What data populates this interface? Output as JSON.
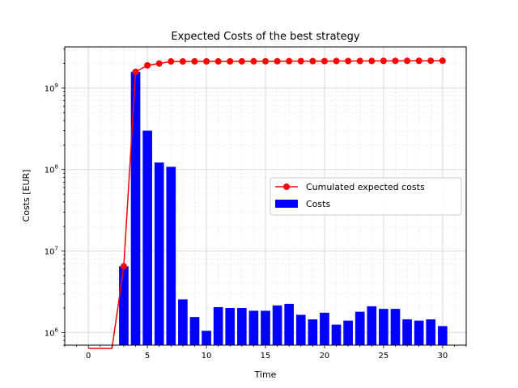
{
  "chart_data": {
    "type": "bar+line",
    "title": "Expected Costs of the best strategy",
    "xlabel": "Time",
    "ylabel": "Costs [EUR]",
    "xlim": [
      -2,
      32
    ],
    "ylim": [
      700000,
      3200000000
    ],
    "yscale": "log",
    "grid": true,
    "legend_placement": "center-right",
    "x_ticks": [
      0,
      5,
      10,
      15,
      20,
      25,
      30
    ],
    "y_ticks": [
      {
        "value": 1000000,
        "label_base": "10",
        "label_exp": "6"
      },
      {
        "value": 10000000,
        "label_base": "10",
        "label_exp": "7"
      },
      {
        "value": 100000000,
        "label_base": "10",
        "label_exp": "8"
      },
      {
        "value": 1000000000,
        "label_base": "10",
        "label_exp": "9"
      }
    ],
    "series": [
      {
        "name": "Cumulated expected costs",
        "kind": "line",
        "color": "#ff0000",
        "x": [
          0,
          1,
          2,
          3,
          4,
          5,
          6,
          7,
          8,
          9,
          10,
          11,
          12,
          13,
          14,
          15,
          16,
          17,
          18,
          19,
          20,
          21,
          22,
          23,
          24,
          25,
          26,
          27,
          28,
          29,
          30
        ],
        "values": [
          0,
          0,
          0,
          6500000,
          1580000000,
          1900000000,
          2000000000,
          2120000000,
          2120000000,
          2125000000,
          2125000000,
          2125000000,
          2128000000,
          2130000000,
          2132000000,
          2133000000,
          2135000000,
          2137000000,
          2139000000,
          2140000000,
          2142000000,
          2143000000,
          2145000000,
          2147000000,
          2150000000,
          2152000000,
          2154000000,
          2156000000,
          2158000000,
          2160000000,
          2162000000
        ]
      },
      {
        "name": "Costs",
        "kind": "bar",
        "color": "#0000ff",
        "x": [
          3,
          4,
          5,
          6,
          7,
          8,
          9,
          10,
          11,
          12,
          13,
          14,
          15,
          16,
          17,
          18,
          19,
          20,
          21,
          22,
          23,
          24,
          25,
          26,
          27,
          28,
          29,
          30
        ],
        "values": [
          6500000,
          1580000000,
          300000000,
          122000000,
          108000000,
          2550000,
          1550000,
          1050000,
          2050000,
          2000000,
          2000000,
          1850000,
          1850000,
          2150000,
          2250000,
          1650000,
          1450000,
          1750000,
          1250000,
          1400000,
          1800000,
          2100000,
          1950000,
          1950000,
          1450000,
          1400000,
          1450000,
          1200000
        ]
      }
    ]
  }
}
